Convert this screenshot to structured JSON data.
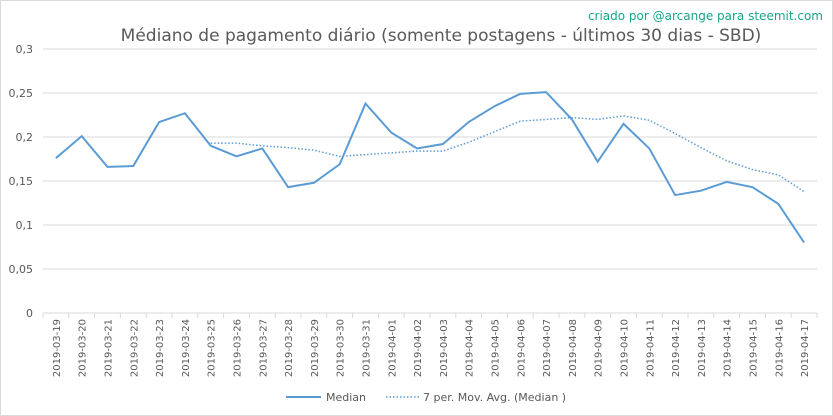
{
  "credit": "criado por @arcange para steemit.com",
  "colors": {
    "line": "#5b9bd5",
    "grid": "#d9d9d9",
    "text": "#595959",
    "credit": "#17a589"
  },
  "chart_data": {
    "type": "line",
    "title": "Médiano de pagamento diário (somente postagens - últimos 30 dias - SBD)",
    "xlabel": "",
    "ylabel": "",
    "ylim": [
      0,
      0.3
    ],
    "yticks": [
      "0",
      "0,05",
      "0,1",
      "0,15",
      "0,2",
      "0,25",
      "0,3"
    ],
    "grid": true,
    "legend_position": "bottom",
    "categories": [
      "2019-03-19",
      "2019-03-20",
      "2019-03-21",
      "2019-03-22",
      "2019-03-23",
      "2019-03-24",
      "2019-03-25",
      "2019-03-26",
      "2019-03-27",
      "2019-03-28",
      "2019-03-29",
      "2019-03-30",
      "2019-03-31",
      "2019-04-01",
      "2019-04-02",
      "2019-04-03",
      "2019-04-04",
      "2019-04-05",
      "2019-04-06",
      "2019-04-07",
      "2019-04-08",
      "2019-04-09",
      "2019-04-10",
      "2019-04-11",
      "2019-04-12",
      "2019-04-13",
      "2019-04-14",
      "2019-04-15",
      "2019-04-16",
      "2019-04-17"
    ],
    "series": [
      {
        "name": "Median",
        "style": "solid",
        "values": [
          0.176,
          0.201,
          0.166,
          0.167,
          0.217,
          0.227,
          0.19,
          0.178,
          0.187,
          0.143,
          0.148,
          0.169,
          0.238,
          0.205,
          0.187,
          0.192,
          0.217,
          0.235,
          0.249,
          0.251,
          0.22,
          0.172,
          0.215,
          0.187,
          0.134,
          0.139,
          0.149,
          0.143,
          0.124,
          0.08
        ]
      },
      {
        "name": "7 per. Mov. Avg. (Median )",
        "style": "dotted",
        "values": [
          null,
          null,
          null,
          null,
          null,
          null,
          0.193,
          0.193,
          0.19,
          0.188,
          0.185,
          0.178,
          0.18,
          0.182,
          0.184,
          0.184,
          0.194,
          0.206,
          0.218,
          0.22,
          0.222,
          0.22,
          0.224,
          0.219,
          0.204,
          0.188,
          0.173,
          0.163,
          0.157,
          0.138
        ]
      }
    ]
  }
}
